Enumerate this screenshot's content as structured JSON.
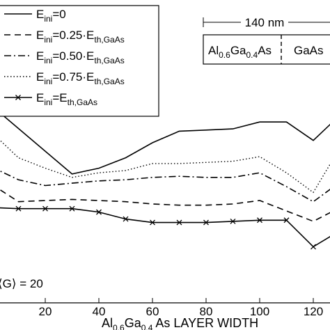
{
  "chart_data": {
    "type": "line",
    "xlabel": {
      "base1": "Al",
      "sub1": "0.6",
      "base2": "Ga",
      "sub2": "0.4",
      "rest": "As LAYER WIDTH"
    },
    "xticks": [
      20,
      40,
      60,
      80,
      100,
      120
    ],
    "xlim": [
      0,
      130
    ],
    "annotation": "⟨G⟩ = 20",
    "legend": {
      "placement": "top-left",
      "entries": [
        {
          "base": "E",
          "sub": "ini",
          "rest": "=0"
        },
        {
          "base": "E",
          "sub": "ini",
          "rest": "=0.25·E",
          "sub2": "th,GaAs"
        },
        {
          "base": "E",
          "sub": "ini",
          "rest": "=0.50·E",
          "sub2": "th,GaAs"
        },
        {
          "base": "E",
          "sub": "ini",
          "rest": "=0.75·E",
          "sub2": "th,GaAs"
        },
        {
          "base": "E",
          "sub": "ini",
          "rest": "=E",
          "sub2": "th,GaAs"
        }
      ]
    },
    "inset": {
      "scale_label": "140 nm",
      "left_label": {
        "base1": "Al",
        "sub1": "0.6",
        "base2": "Ga",
        "sub2": "0.4",
        "rest": "As"
      },
      "right_label": "GaAs"
    },
    "series": [
      {
        "style": "solid",
        "marker": "none",
        "x": [
          0,
          30,
          40,
          50,
          60,
          70,
          80,
          90,
          100,
          110,
          120,
          130
        ],
        "y": [
          0.88,
          0.29,
          0.34,
          0.43,
          0.56,
          0.66,
          0.67,
          0.68,
          0.74,
          0.74,
          0.58,
          0.8
        ]
      },
      {
        "style": "dash",
        "marker": "none",
        "x": [
          0,
          10,
          20,
          30,
          40,
          50,
          60,
          70,
          80,
          90,
          100,
          110,
          120,
          130
        ],
        "y": [
          0.2,
          0.05,
          0.06,
          0.07,
          0.06,
          0.05,
          0.03,
          0.02,
          0.02,
          0.03,
          0.06,
          -0.03,
          -0.12,
          0.0
        ]
      },
      {
        "style": "dashdot",
        "marker": "none",
        "x": [
          0,
          10,
          20,
          30,
          40,
          50,
          60,
          70,
          80,
          90,
          100,
          110,
          120,
          130
        ],
        "y": [
          0.35,
          0.24,
          0.19,
          0.21,
          0.23,
          0.24,
          0.26,
          0.27,
          0.26,
          0.26,
          0.3,
          0.18,
          0.05,
          0.22
        ]
      },
      {
        "style": "dotted",
        "marker": "none",
        "x": [
          0,
          10,
          20,
          30,
          40,
          50,
          60,
          70,
          80,
          90,
          100,
          110,
          120,
          130
        ],
        "y": [
          0.65,
          0.43,
          0.34,
          0.26,
          0.3,
          0.32,
          0.38,
          0.38,
          0.39,
          0.4,
          0.44,
          0.3,
          0.13,
          0.52
        ]
      },
      {
        "style": "solid",
        "marker": "x",
        "x": [
          0,
          10,
          20,
          30,
          40,
          50,
          60,
          70,
          80,
          90,
          100,
          110,
          120,
          130
        ],
        "y": [
          0.0,
          -0.01,
          -0.01,
          -0.01,
          -0.04,
          -0.1,
          -0.13,
          -0.13,
          -0.13,
          -0.12,
          -0.11,
          -0.11,
          -0.34,
          -0.2
        ]
      }
    ]
  }
}
